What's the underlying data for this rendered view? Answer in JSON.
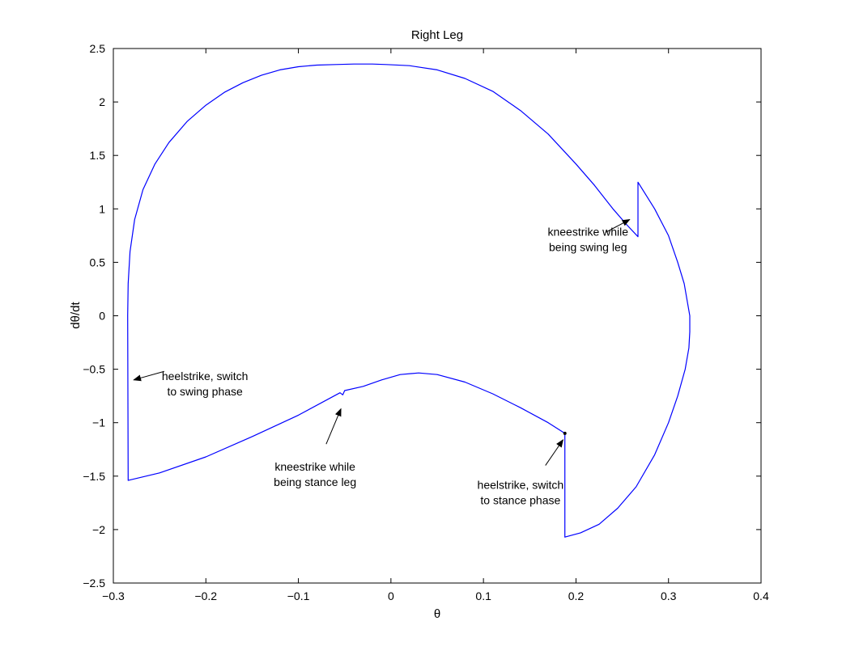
{
  "chart_data": {
    "type": "line",
    "title": "Right Leg",
    "xlabel": "θ",
    "ylabel": "dθ/dt",
    "xlim": [
      -0.3,
      0.4
    ],
    "ylim": [
      -2.5,
      2.5
    ],
    "xticks": [
      -0.3,
      -0.2,
      -0.1,
      0,
      0.1,
      0.2,
      0.3,
      0.4
    ],
    "xtick_labels": [
      "−0.3",
      "−0.2",
      "−0.1",
      "0",
      "0.1",
      "0.2",
      "0.3",
      "0.4"
    ],
    "yticks": [
      -2.5,
      -2,
      -1.5,
      -1,
      -0.5,
      0,
      0.5,
      1,
      1.5,
      2,
      2.5
    ],
    "ytick_labels": [
      "−2.5",
      "−2",
      "−1.5",
      "−1",
      "−0.5",
      "0",
      "0.5",
      "1",
      "1.5",
      "2",
      "2.5"
    ],
    "grid": false,
    "line_color": "#0000ff",
    "series": [
      {
        "x": [
          -0.2845,
          -0.284,
          -0.282,
          -0.277,
          -0.268,
          -0.255,
          -0.24,
          -0.22,
          -0.2,
          -0.18,
          -0.16,
          -0.14,
          -0.12,
          -0.1,
          -0.08,
          -0.06,
          -0.04,
          -0.02,
          -0.005,
          0.02,
          0.05,
          0.08,
          0.11,
          0.14,
          0.17,
          0.2,
          0.22,
          0.24,
          0.255,
          0.267,
          0.267,
          0.285,
          0.3,
          0.31,
          0.317,
          0.321,
          0.323,
          0.323,
          0.322,
          0.318,
          0.31,
          0.3,
          0.285,
          0.265,
          0.245,
          0.225,
          0.205,
          0.188,
          0.188,
          0.188,
          0.17,
          0.14,
          0.11,
          0.08,
          0.05,
          0.03,
          0.01,
          -0.01,
          -0.03,
          -0.05,
          -0.052,
          -0.055,
          -0.1,
          -0.15,
          -0.2,
          -0.25,
          -0.284,
          -0.2845
        ],
        "y": [
          0.0,
          0.3,
          0.6,
          0.9,
          1.18,
          1.42,
          1.62,
          1.82,
          1.97,
          2.09,
          2.18,
          2.25,
          2.3,
          2.33,
          2.345,
          2.35,
          2.355,
          2.355,
          2.35,
          2.34,
          2.3,
          2.22,
          2.1,
          1.92,
          1.7,
          1.42,
          1.22,
          1.0,
          0.85,
          0.74,
          1.25,
          1.0,
          0.75,
          0.5,
          0.3,
          0.1,
          0.0,
          -0.15,
          -0.3,
          -0.5,
          -0.75,
          -1.0,
          -1.3,
          -1.6,
          -1.8,
          -1.95,
          -2.03,
          -2.07,
          -1.5,
          -1.1,
          -1.0,
          -0.86,
          -0.73,
          -0.62,
          -0.55,
          -0.535,
          -0.55,
          -0.6,
          -0.66,
          -0.7,
          -0.74,
          -0.72,
          -0.93,
          -1.13,
          -1.32,
          -1.47,
          -1.54,
          0.0
        ]
      }
    ],
    "annotations": [
      {
        "lines": [
          "kneestrike while",
          "being swing leg"
        ],
        "text_pos": [
          0.213,
          0.75
        ],
        "arrow_tail": [
          0.232,
          0.78
        ],
        "arrow_head": [
          0.258,
          0.9
        ]
      },
      {
        "lines": [
          "heelstrike, switch",
          "to swing phase"
        ],
        "text_pos": [
          -0.201,
          -0.6
        ],
        "arrow_tail": [
          -0.245,
          -0.52
        ],
        "arrow_head": [
          -0.278,
          -0.6
        ]
      },
      {
        "lines": [
          "kneestrike while",
          "being stance leg"
        ],
        "text_pos": [
          -0.082,
          -1.45
        ],
        "arrow_tail": [
          -0.07,
          -1.2
        ],
        "arrow_head": [
          -0.054,
          -0.87
        ]
      },
      {
        "lines": [
          "heelstrike, switch",
          "to stance phase"
        ],
        "text_pos": [
          0.14,
          -1.62
        ],
        "arrow_tail": [
          0.167,
          -1.4
        ],
        "arrow_head": [
          0.186,
          -1.16
        ]
      }
    ],
    "marker": {
      "x": 0.188,
      "y": -1.1
    }
  }
}
